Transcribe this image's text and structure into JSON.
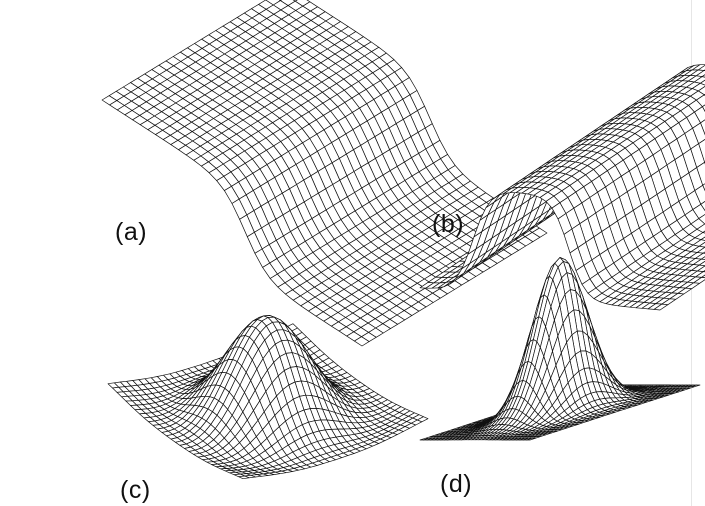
{
  "panels": [
    {
      "id": "a",
      "label": "(a)",
      "surface": "step-function-surface"
    },
    {
      "id": "b",
      "label": "(b)",
      "surface": "rectangular-ridge-surface"
    },
    {
      "id": "c",
      "label": "(c)",
      "surface": "mexican-hat-wavelet-surface"
    },
    {
      "id": "d",
      "label": "(d)",
      "surface": "gaussian-peak-surface"
    }
  ],
  "colors": {
    "wire": "#111111",
    "fill": "#ffffff",
    "background": "#ffffff"
  }
}
